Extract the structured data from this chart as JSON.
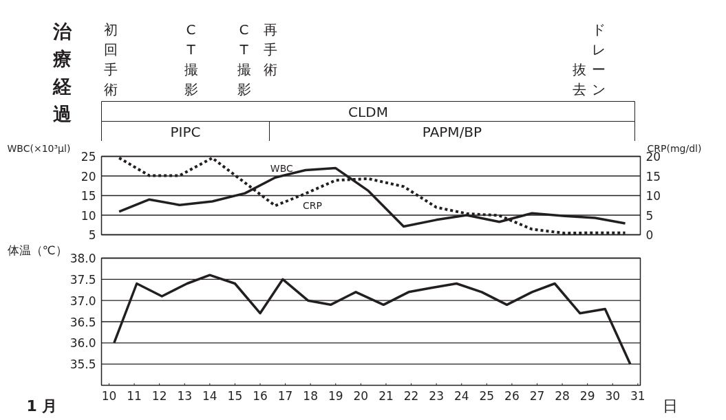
{
  "chart_data": [
    {
      "type": "other",
      "title": "治療経過",
      "annotations": [
        "初回手術",
        "CT撮影",
        "CT撮影",
        "再手術",
        "ドレーン抜去",
        "CLDM",
        "PIPC",
        "PAPM/BP"
      ]
    },
    {
      "type": "line",
      "xlim": [
        9.7,
        31.1
      ],
      "ylim": [
        5,
        25
      ],
      "yticks": [
        5,
        10,
        15,
        20,
        25
      ],
      "y2lim": [
        0,
        20
      ],
      "y2ticks": [
        0,
        5,
        10,
        15,
        20
      ],
      "ylabel": "WBC(×10³μl)",
      "y2label": "CRP(mg/dl)",
      "grid": "y",
      "tick_labels": "y",
      "series": [
        {
          "name": "WBC",
          "color": "#231f20",
          "line_style": "solid",
          "x": [
            10.4,
            11.6,
            12.8,
            14.1,
            15.4,
            16.6,
            17.8,
            19.0,
            20.3,
            21.7,
            23.0,
            24.2,
            25.5,
            26.8,
            28.1,
            29.3,
            30.5
          ],
          "values": [
            10.9,
            14.0,
            12.6,
            13.5,
            15.6,
            19.6,
            21.5,
            22.0,
            16.2,
            7.1,
            8.8,
            10.0,
            8.3,
            10.5,
            9.8,
            9.3,
            7.9
          ]
        },
        {
          "name": "CRP",
          "color": "#231f20",
          "line_style": "dotted",
          "axis": "y2",
          "x": [
            10.4,
            11.6,
            12.8,
            14.1,
            16.6,
            17.8,
            19.0,
            20.3,
            21.7,
            23.0,
            24.2,
            25.5,
            26.8,
            28.1,
            29.3,
            30.5
          ],
          "values": [
            19.6,
            15.1,
            15.1,
            19.6,
            7.4,
            10.5,
            13.9,
            14.3,
            12.3,
            7.0,
            5.4,
            4.9,
            1.4,
            0.4,
            0.5,
            0.5
          ]
        }
      ]
    },
    {
      "type": "line",
      "ylabel": "体温（℃）",
      "xlabel": "日",
      "xlim": [
        9.7,
        31.1
      ],
      "xticks": [
        10,
        11,
        12,
        13,
        14,
        15,
        16,
        17,
        18,
        19,
        20,
        21,
        22,
        23,
        24,
        25,
        26,
        27,
        28,
        29,
        30,
        31
      ],
      "ylim": [
        35,
        38
      ],
      "yticks": [
        {
          "value": 35.5,
          "label": "35.5"
        },
        {
          "value": 36,
          "label": "36.0"
        },
        {
          "value": 36.5,
          "label": "36.5"
        },
        {
          "value": 37,
          "label": "37.0"
        },
        {
          "value": 37.5,
          "label": "37.5"
        },
        {
          "value": 38,
          "label": "38.0"
        }
      ],
      "grid": "y",
      "annotations": [
        "1 月"
      ],
      "series": [
        {
          "color": "#231f20",
          "line_style": "solid",
          "x": [
            10.2,
            11.1,
            12.1,
            13.1,
            14.0,
            15.0,
            16.0,
            16.9,
            17.9,
            18.8,
            19.8,
            20.9,
            21.9,
            22.8,
            23.8,
            24.8,
            25.8,
            26.8,
            27.7,
            28.7,
            29.7,
            30.7
          ],
          "values": [
            36.0,
            37.4,
            37.1,
            37.4,
            37.6,
            37.4,
            36.7,
            37.5,
            37.0,
            36.9,
            37.2,
            36.9,
            37.2,
            37.3,
            37.4,
            37.2,
            36.9,
            37.2,
            37.4,
            36.7,
            36.8,
            35.5
          ]
        }
      ]
    }
  ]
}
